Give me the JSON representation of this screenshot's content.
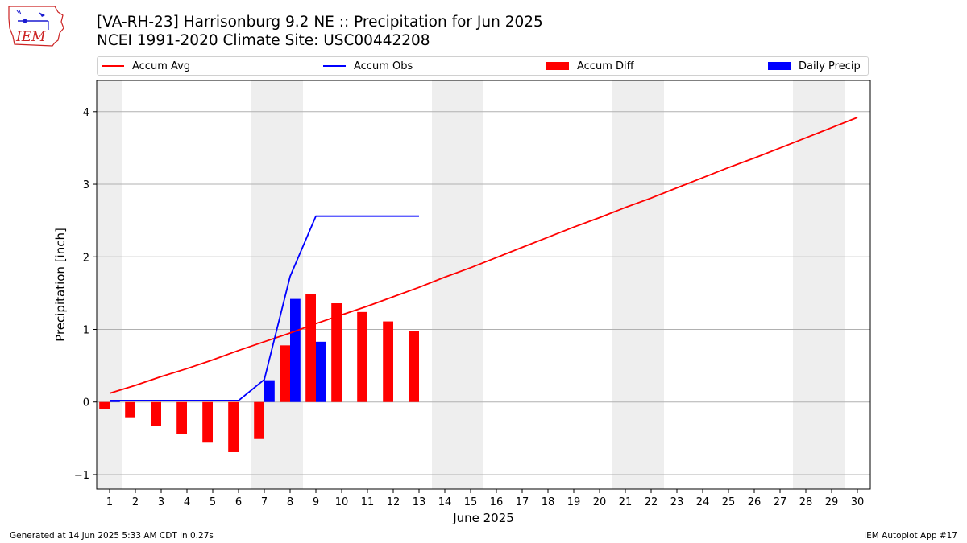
{
  "header": {
    "title_line1": "[VA-RH-23] Harrisonburg 9.2 NE :: Precipitation for Jun 2025",
    "title_line2": "NCEI 1991-2020 Climate Site: USC00442208"
  },
  "logo": {
    "text": "IEM"
  },
  "legend": {
    "items": [
      {
        "label": "Accum Avg",
        "kind": "line",
        "color": "#ff0000"
      },
      {
        "label": "Accum Obs",
        "kind": "line",
        "color": "#0000ff"
      },
      {
        "label": "Accum Diff",
        "kind": "box",
        "color": "#ff0000"
      },
      {
        "label": "Daily Precip",
        "kind": "box",
        "color": "#0000ff"
      }
    ]
  },
  "footer": {
    "generated": "Generated at 14 Jun 2025 5:33 AM CDT in 0.27s",
    "app": "IEM Autoplot App #17"
  },
  "colors": {
    "avg": "#ff0000",
    "obs": "#0000ff",
    "diff": "#ff0000",
    "daily": "#0000ff",
    "weekend": "#eeeeee",
    "grid": "#b0b0b0"
  },
  "chart_data": {
    "type": "bar",
    "title": "[VA-RH-23] Harrisonburg 9.2 NE :: Precipitation for Jun 2025",
    "subtitle": "NCEI 1991-2020 Climate Site: USC00442208",
    "xlabel": "June 2025",
    "ylabel": "Precipitation [inch]",
    "x_ticks": [
      1,
      2,
      3,
      4,
      5,
      6,
      7,
      8,
      9,
      10,
      11,
      12,
      13,
      14,
      15,
      16,
      17,
      18,
      19,
      20,
      21,
      22,
      23,
      24,
      25,
      26,
      27,
      28,
      29,
      30
    ],
    "y_ticks": [
      -1,
      0,
      1,
      2,
      3,
      4
    ],
    "xlim": [
      0.5,
      30.5
    ],
    "ylim": [
      -1.2,
      4.43
    ],
    "grid": "horizontal",
    "legend_position": "top",
    "weekend_days": [
      1,
      7,
      8,
      14,
      15,
      21,
      22,
      28,
      29
    ],
    "series": [
      {
        "name": "Accum Avg",
        "kind": "line",
        "x": [
          1,
          2,
          3,
          4,
          5,
          6,
          7,
          8,
          9,
          10,
          11,
          12,
          13,
          14,
          15,
          16,
          17,
          18,
          19,
          20,
          21,
          22,
          23,
          24,
          25,
          26,
          27,
          28,
          29,
          30
        ],
        "values": [
          0.12,
          0.23,
          0.35,
          0.46,
          0.58,
          0.71,
          0.83,
          0.95,
          1.08,
          1.2,
          1.32,
          1.45,
          1.58,
          1.72,
          1.85,
          1.99,
          2.13,
          2.27,
          2.41,
          2.54,
          2.68,
          2.81,
          2.95,
          3.09,
          3.23,
          3.36,
          3.5,
          3.64,
          3.78,
          3.92
        ]
      },
      {
        "name": "Accum Obs",
        "kind": "line",
        "x": [
          1,
          2,
          3,
          4,
          5,
          6,
          7,
          8,
          9,
          10,
          11,
          12,
          13
        ],
        "values": [
          0.02,
          0.02,
          0.02,
          0.02,
          0.02,
          0.02,
          0.31,
          1.73,
          2.56,
          2.56,
          2.56,
          2.56,
          2.56
        ]
      },
      {
        "name": "Accum Diff",
        "kind": "bar",
        "x": [
          1,
          2,
          3,
          4,
          5,
          6,
          7,
          8,
          9,
          10,
          11,
          12,
          13
        ],
        "values": [
          -0.1,
          -0.21,
          -0.33,
          -0.44,
          -0.56,
          -0.69,
          -0.51,
          0.78,
          1.49,
          1.36,
          1.24,
          1.11,
          0.98
        ]
      },
      {
        "name": "Daily Precip",
        "kind": "bar",
        "x": [
          1,
          7,
          8,
          9
        ],
        "values": [
          0.02,
          0.3,
          1.42,
          0.83
        ]
      }
    ]
  }
}
